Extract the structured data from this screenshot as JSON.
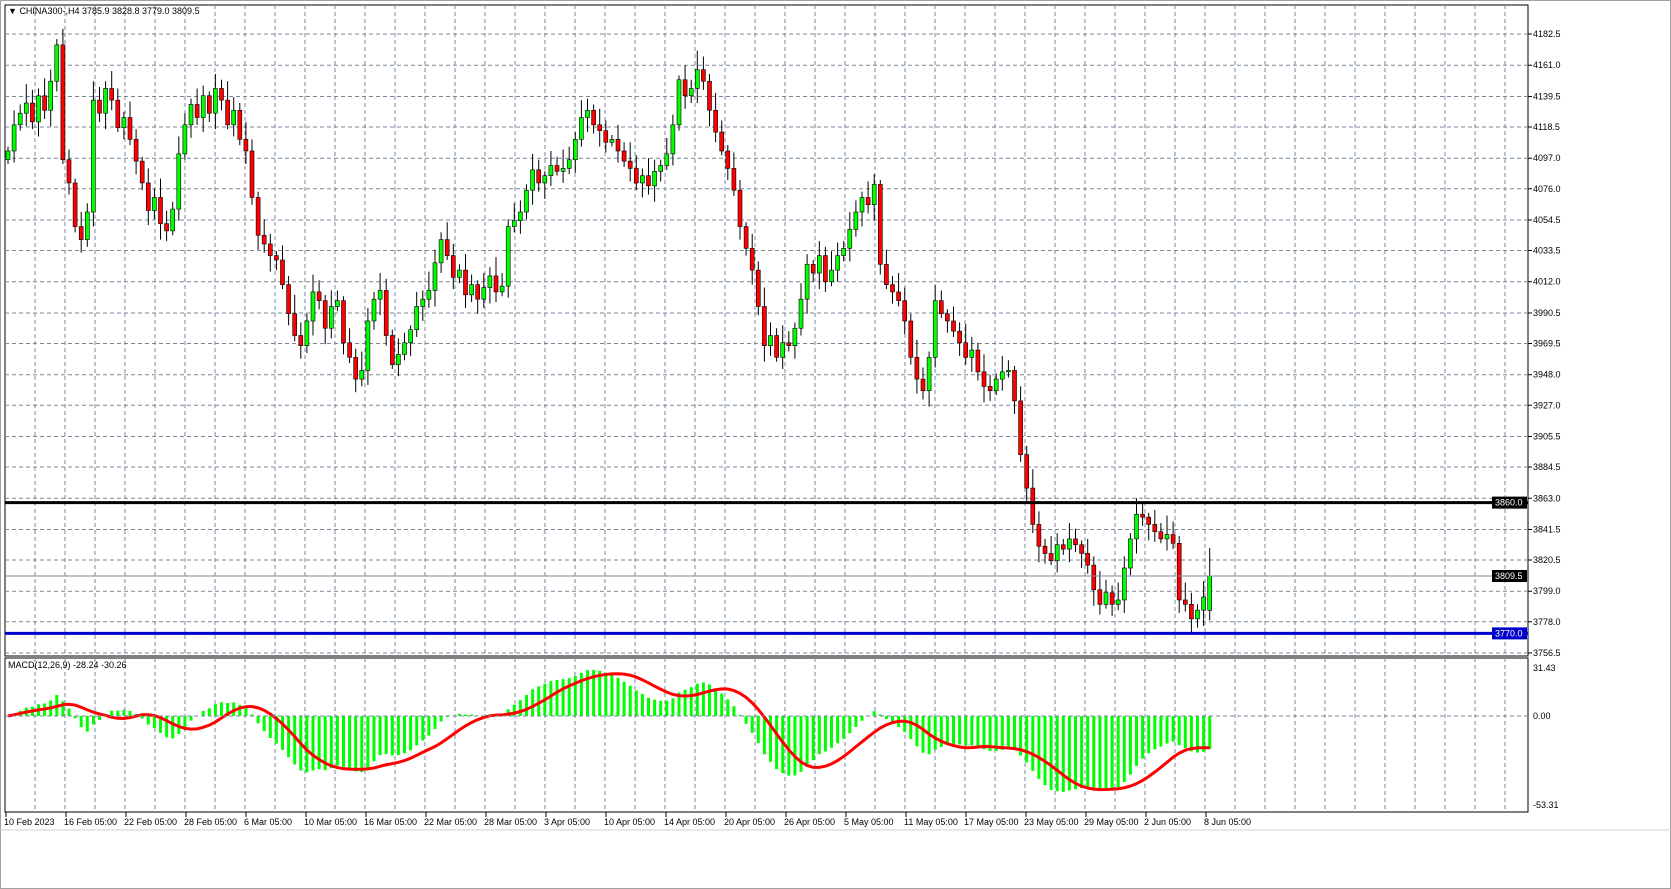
{
  "header": {
    "symbol_line": "CHINA300-,H4  3785.9 3828.8 3779.0 3809.5",
    "menu_icon": "triangle-down-icon"
  },
  "price_axis": {
    "ticks": [
      "4182.5",
      "4161.0",
      "4139.5",
      "4118.5",
      "4097.0",
      "4076.0",
      "4054.5",
      "4033.5",
      "4012.0",
      "3990.5",
      "3969.5",
      "3948.0",
      "3927.0",
      "3905.5",
      "3884.5",
      "3863.0",
      "3841.5",
      "3820.5",
      "3799.0",
      "3778.0",
      "3756.5"
    ]
  },
  "levels": {
    "resistance": {
      "value": 3860.0,
      "label": "3860.0",
      "color": "#000000"
    },
    "support": {
      "value": 3770.0,
      "label": "3770.0",
      "color": "#0000cc"
    },
    "current": {
      "value": 3809.5,
      "label": "3809.5",
      "color": "#778899"
    }
  },
  "macd": {
    "label": "MACD(12,26,9) -28.24 -30.26",
    "axis_ticks": [
      "31.43",
      "0.00",
      "-53.31"
    ],
    "histogram_color": "#00ff00",
    "signal_color": "#ff0000"
  },
  "time_axis": {
    "labels": [
      "10 Feb 2023",
      "16 Feb 05:00",
      "22 Feb 05:00",
      "28 Feb 05:00",
      "6 Mar 05:00",
      "10 Mar 05:00",
      "16 Mar 05:00",
      "22 Mar 05:00",
      "28 Mar 05:00",
      "3 Apr 05:00",
      "10 Apr 05:00",
      "14 Apr 05:00",
      "20 Apr 05:00",
      "26 Apr 05:00",
      "5 May 05:00",
      "11 May 05:00",
      "17 May 05:00",
      "23 May 05:00",
      "29 May 05:00",
      "2 Jun 05:00",
      "8 Jun 05:00"
    ]
  },
  "colors": {
    "bull": "#00ff00",
    "bear": "#ff0000",
    "grid": "#778899"
  },
  "chart_data": {
    "type": "candlestick",
    "timeframe": "H4",
    "ylim": [
      3756.5,
      4182.5
    ],
    "closes": [
      4102,
      4120,
      4128,
      4135,
      4122,
      4140,
      4130,
      4150,
      4175,
      4096,
      4080,
      4050,
      4041,
      4060,
      4137,
      4128,
      4145,
      4137,
      4118,
      4125,
      4110,
      4095,
      4080,
      4061,
      4070,
      4052,
      4047,
      4062,
      4100,
      4120,
      4134,
      4125,
      4140,
      4128,
      4145,
      4137,
      4120,
      4130,
      4110,
      4102,
      4070,
      4044,
      4038,
      4030,
      4027,
      4010,
      3990,
      3975,
      3968,
      3985,
      4005,
      3999,
      3980,
      3995,
      3999,
      3970,
      3960,
      3945,
      3951,
      3985,
      4000,
      4006,
      3975,
      3955,
      3962,
      3970,
      3979,
      3995,
      4000,
      4006,
      4025,
      4041,
      4030,
      4015,
      4020,
      4003,
      4010,
      4000,
      4008,
      4016,
      4005,
      4009,
      4050,
      4054,
      4060,
      4075,
      4089,
      4080,
      4085,
      4092,
      4088,
      4090,
      4096,
      4110,
      4125,
      4130,
      4120,
      4116,
      4108,
      4110,
      4102,
      4095,
      4090,
      4080,
      4085,
      4078,
      4088,
      4092,
      4100,
      4120,
      4151,
      4140,
      4145,
      4158,
      4150,
      4130,
      4115,
      4102,
      4090,
      4075,
      4050,
      4035,
      4020,
      3995,
      3968,
      3975,
      3960,
      3970,
      3968,
      3980,
      4000,
      4024,
      4018,
      4030,
      4012,
      4020,
      4030,
      4035,
      4048,
      4060,
      4070,
      4065,
      4079,
      4024,
      4010,
      4005,
      3999,
      3985,
      3960,
      3945,
      3937,
      3960,
      3999,
      3990,
      3985,
      3978,
      3970,
      3960,
      3965,
      3950,
      3940,
      3937,
      3945,
      3950,
      3951,
      3930,
      3893,
      3870,
      3845,
      3830,
      3825,
      3820,
      3831,
      3828,
      3835,
      3831,
      3825,
      3817,
      3800,
      3790,
      3798,
      3790,
      3793,
      3815,
      3835,
      3852,
      3850,
      3845,
      3840,
      3835,
      3838,
      3832,
      3793,
      3790,
      3780,
      3786,
      3795,
      3809.5
    ],
    "last_bar": {
      "open": 3785.9,
      "high": 3828.8,
      "low": 3779.0,
      "close": 3809.5
    },
    "macd_params": [
      12,
      26,
      9
    ],
    "macd_last": {
      "main": -28.24,
      "signal": -30.26
    },
    "macd_ylim": [
      -53.31,
      31.43
    ]
  }
}
